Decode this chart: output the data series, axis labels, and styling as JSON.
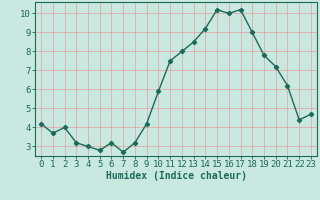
{
  "x": [
    0,
    1,
    2,
    3,
    4,
    5,
    6,
    7,
    8,
    9,
    10,
    11,
    12,
    13,
    14,
    15,
    16,
    17,
    18,
    19,
    20,
    21,
    22,
    23
  ],
  "y": [
    4.2,
    3.7,
    4.0,
    3.2,
    3.0,
    2.8,
    3.2,
    2.7,
    3.2,
    4.2,
    5.9,
    7.5,
    8.0,
    8.5,
    9.2,
    10.2,
    10.0,
    10.2,
    9.0,
    7.8,
    7.2,
    6.2,
    4.4,
    4.7
  ],
  "line_color": "#1a6b5a",
  "marker": "D",
  "marker_size": 2.2,
  "linewidth": 1.0,
  "xlabel": "Humidex (Indice chaleur)",
  "xlabel_fontsize": 7,
  "ylim": [
    2.5,
    10.6
  ],
  "xlim": [
    -0.5,
    23.5
  ],
  "yticks": [
    3,
    4,
    5,
    6,
    7,
    8,
    9,
    10
  ],
  "xticks": [
    0,
    1,
    2,
    3,
    4,
    5,
    6,
    7,
    8,
    9,
    10,
    11,
    12,
    13,
    14,
    15,
    16,
    17,
    18,
    19,
    20,
    21,
    22,
    23
  ],
  "xtick_labels": [
    "0",
    "1",
    "2",
    "3",
    "4",
    "5",
    "6",
    "7",
    "8",
    "9",
    "10",
    "11",
    "12",
    "13",
    "14",
    "15",
    "16",
    "17",
    "18",
    "19",
    "20",
    "21",
    "22",
    "23"
  ],
  "bg_color": "#c9e8e0",
  "grid_color": "#e8a0a0",
  "tick_fontsize": 6.5,
  "spine_color": "#1a6b5a"
}
